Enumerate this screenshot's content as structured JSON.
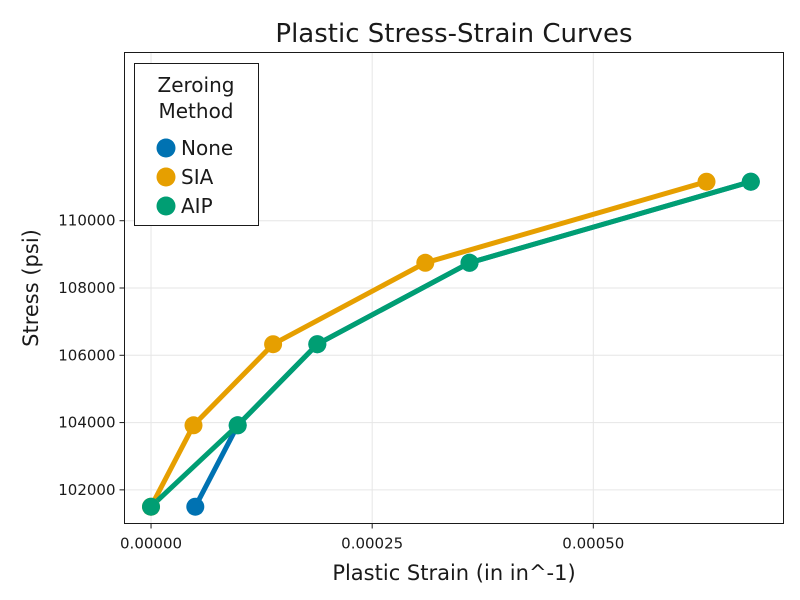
{
  "chart_data": {
    "type": "line",
    "title": "Plastic Stress-Strain Curves",
    "xlabel": "Plastic Strain (in in^-1)",
    "ylabel": "Stress (psi)",
    "xlim": [
      -3e-05,
      0.000715
    ],
    "ylim": [
      101000,
      115000
    ],
    "xticks": [
      0,
      0.00025,
      0.0005
    ],
    "xtick_labels": [
      "0.00000",
      "0.00025",
      "0.00050"
    ],
    "yticks": [
      102000,
      104000,
      106000,
      108000,
      110000
    ],
    "ytick_labels": [
      "102000",
      "104000",
      "106000",
      "108000",
      "110000"
    ],
    "grid": true,
    "legend": {
      "title_line1": "Zeroing",
      "title_line2": "Method",
      "position": "top-left"
    },
    "series": [
      {
        "name": "None",
        "color": "#0072b2",
        "x": [
          5e-05,
          9.8e-05,
          0.000188,
          0.00036,
          0.000678
        ],
        "y": [
          101500,
          103920,
          106330,
          108750,
          111160
        ]
      },
      {
        "name": "SIA",
        "color": "#e69f00",
        "x": [
          0,
          4.8e-05,
          0.000138,
          0.00031,
          0.000628
        ],
        "y": [
          101500,
          103920,
          106330,
          108750,
          111160
        ]
      },
      {
        "name": "AIP",
        "color": "#009e73",
        "x": [
          0,
          9.8e-05,
          0.000188,
          0.00036,
          0.000678
        ],
        "y": [
          101500,
          103920,
          106330,
          108750,
          111160
        ]
      }
    ]
  }
}
